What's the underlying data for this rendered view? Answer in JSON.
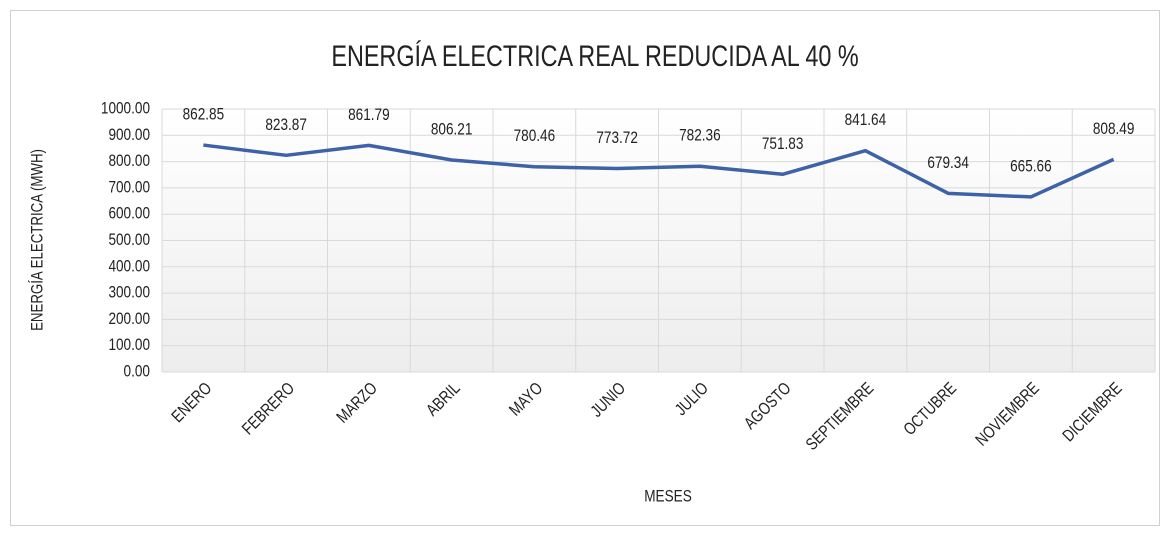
{
  "chart_data": {
    "type": "line",
    "title": "ENERGÍA ELECTRICA REAL REDUCIDA AL 40 %",
    "x_label": "MESES",
    "y_label": "ENERGÍA ELECTRICA (MWH)",
    "categories": [
      "ENERO",
      "FEBRERO",
      "MARZO",
      "ABRIL",
      "MAYO",
      "JUNIO",
      "JULIO",
      "AGOSTO",
      "SEPTIEMBRE",
      "OCTUBRE",
      "NOVIEMBRE",
      "DICIEMBRE"
    ],
    "series": [
      {
        "name": "ENERGÍA ELECTRICA REAL REDUCIDA AL 40 %",
        "color": "#3d62a8",
        "values": [
          862.85,
          823.87,
          861.79,
          806.21,
          780.46,
          773.72,
          782.36,
          751.83,
          841.64,
          679.34,
          665.66,
          808.49
        ]
      }
    ],
    "ylim": [
      0,
      1000
    ],
    "yticks": [
      {
        "value": 0,
        "label": "0.00"
      },
      {
        "value": 100,
        "label": "100.00"
      },
      {
        "value": 200,
        "label": "200.00"
      },
      {
        "value": 300,
        "label": "300.00"
      },
      {
        "value": 400,
        "label": "400.00"
      },
      {
        "value": 500,
        "label": "500.00"
      },
      {
        "value": 600,
        "label": "600.00"
      },
      {
        "value": 700,
        "label": "700.00"
      },
      {
        "value": 800,
        "label": "800.00"
      },
      {
        "value": 900,
        "label": "900.00"
      },
      {
        "value": 1000,
        "label": "1000.00"
      }
    ],
    "grid": true
  }
}
